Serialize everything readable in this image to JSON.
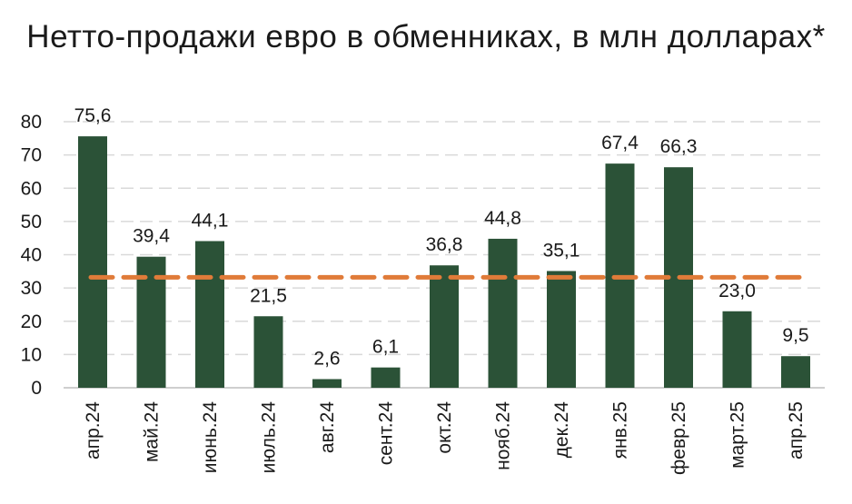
{
  "chart_data": {
    "type": "bar",
    "title": "Нетто-продажи евро в обменниках, в млн долларах*",
    "xlabel": "",
    "ylabel": "",
    "categories": [
      "апр.24",
      "май.24",
      "июнь.24",
      "июль.24",
      "авг.24",
      "сент.24",
      "окт.24",
      "нояб.24",
      "дек.24",
      "янв.25",
      "февр.25",
      "март.25",
      "апр.25"
    ],
    "values": [
      75.6,
      39.4,
      44.1,
      21.5,
      2.6,
      6.1,
      36.8,
      44.8,
      35.1,
      67.4,
      66.3,
      23.0,
      9.5
    ],
    "value_labels": [
      "75,6",
      "39,4",
      "44,1",
      "21,5",
      "2,6",
      "6,1",
      "36,8",
      "44,8",
      "35,1",
      "67,4",
      "66,3",
      "23,0",
      "9,5"
    ],
    "yticks": [
      "0",
      "10",
      "20",
      "30",
      "40",
      "50",
      "60",
      "70",
      "80"
    ],
    "ylim": [
      0,
      80
    ],
    "average_line": 33.2,
    "grid": true,
    "colors": {
      "bar": "#2b5237",
      "average_line": "#e07b39",
      "grid": "#d9d9d9"
    }
  }
}
